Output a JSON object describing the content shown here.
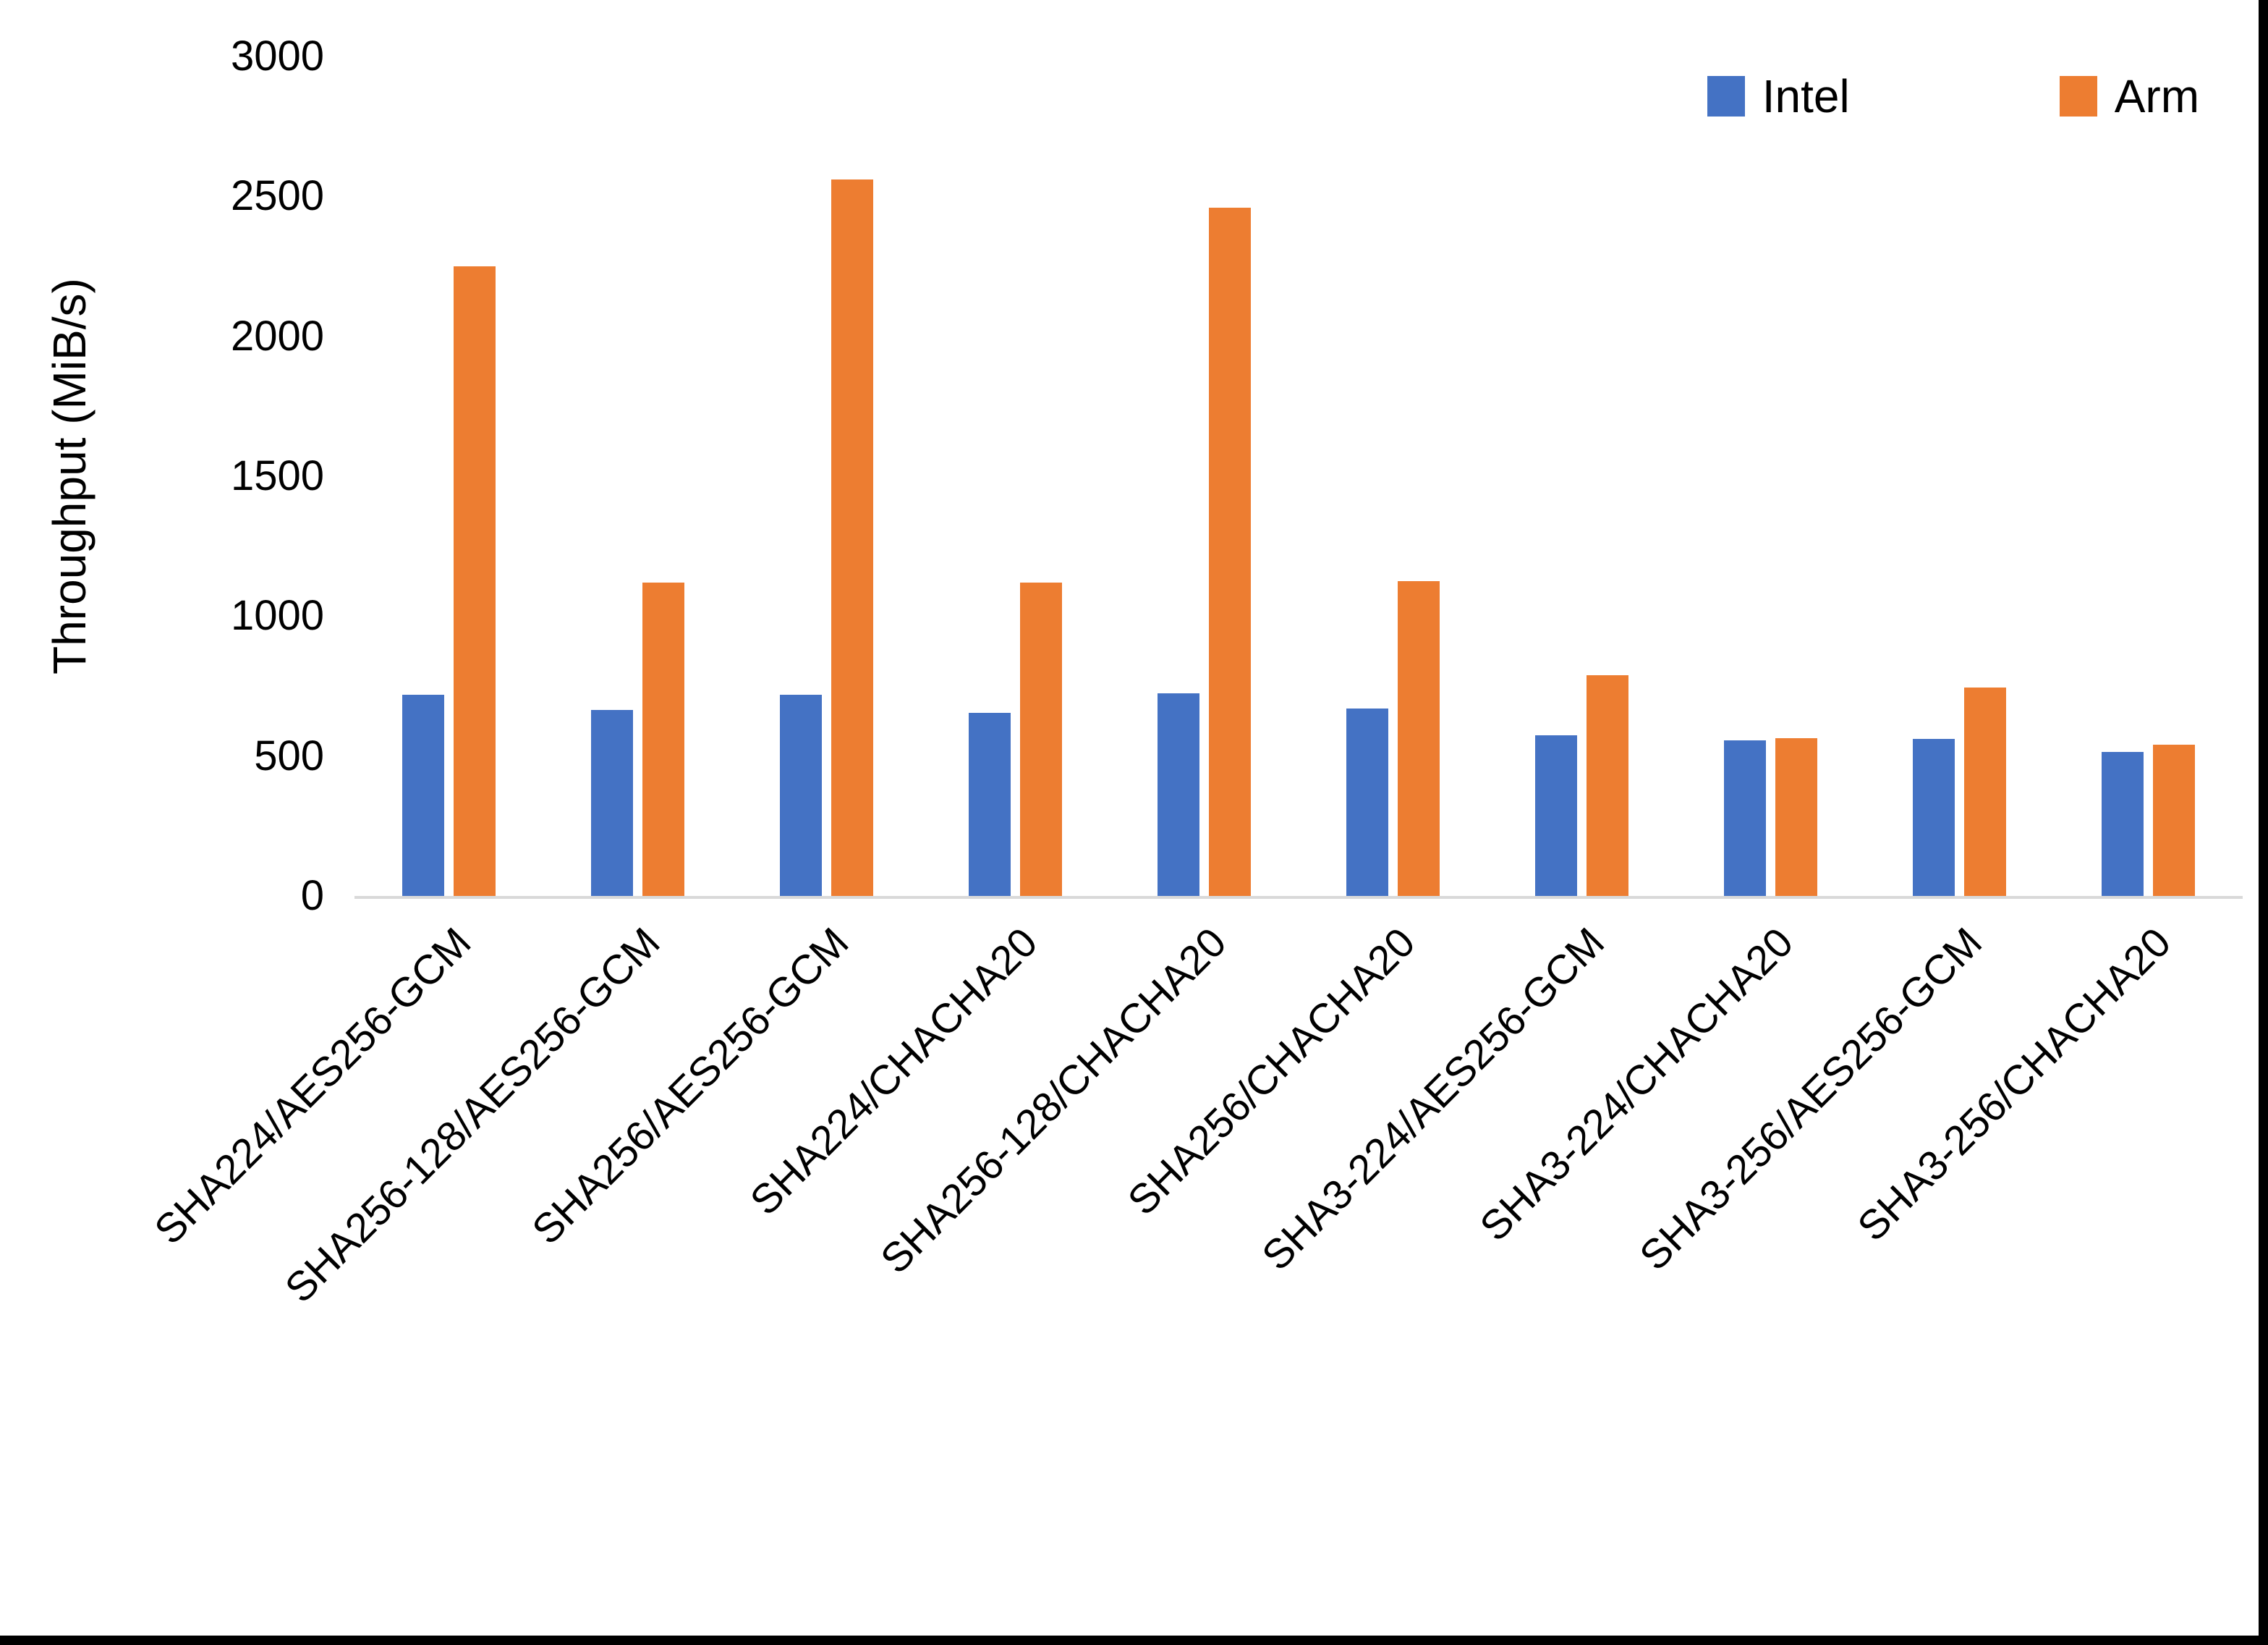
{
  "figure": {
    "background_color": "#ffffff",
    "frame_color": "#000000"
  },
  "chart_data": {
    "type": "bar",
    "title": "",
    "xlabel": "",
    "ylabel": "Throughput (MiB/s)",
    "ylim": [
      0,
      3000
    ],
    "ytick_interval": 500,
    "yticks": [
      3000,
      2500,
      2000,
      1500,
      1000,
      500,
      0
    ],
    "grid": false,
    "legend_position": "top-right",
    "axis_line_color": "#d9d9d9",
    "text_color": "#000000",
    "categories": [
      "SHA224/AES256-GCM",
      "SHA256-128/AES256-GCM",
      "SHA256/AES256-GCM",
      "SHA224/CHACHA20",
      "SHA256-128/CHACHA20",
      "SHA256/CHACHA20",
      "SHA3-224/AES256-GCM",
      "SHA3-224/CHACHA20",
      "SHA3-256/AES256-GCM",
      "SHA3-256/CHACHA20"
    ],
    "series": [
      {
        "name": "Intel",
        "color": "#4472C4",
        "values": [
          720,
          665,
          720,
          655,
          725,
          670,
          575,
          555,
          560,
          515
        ]
      },
      {
        "name": "Arm",
        "color": "#ED7D31",
        "values": [
          2250,
          1120,
          2560,
          1120,
          2460,
          1125,
          790,
          565,
          745,
          540
        ]
      }
    ]
  }
}
